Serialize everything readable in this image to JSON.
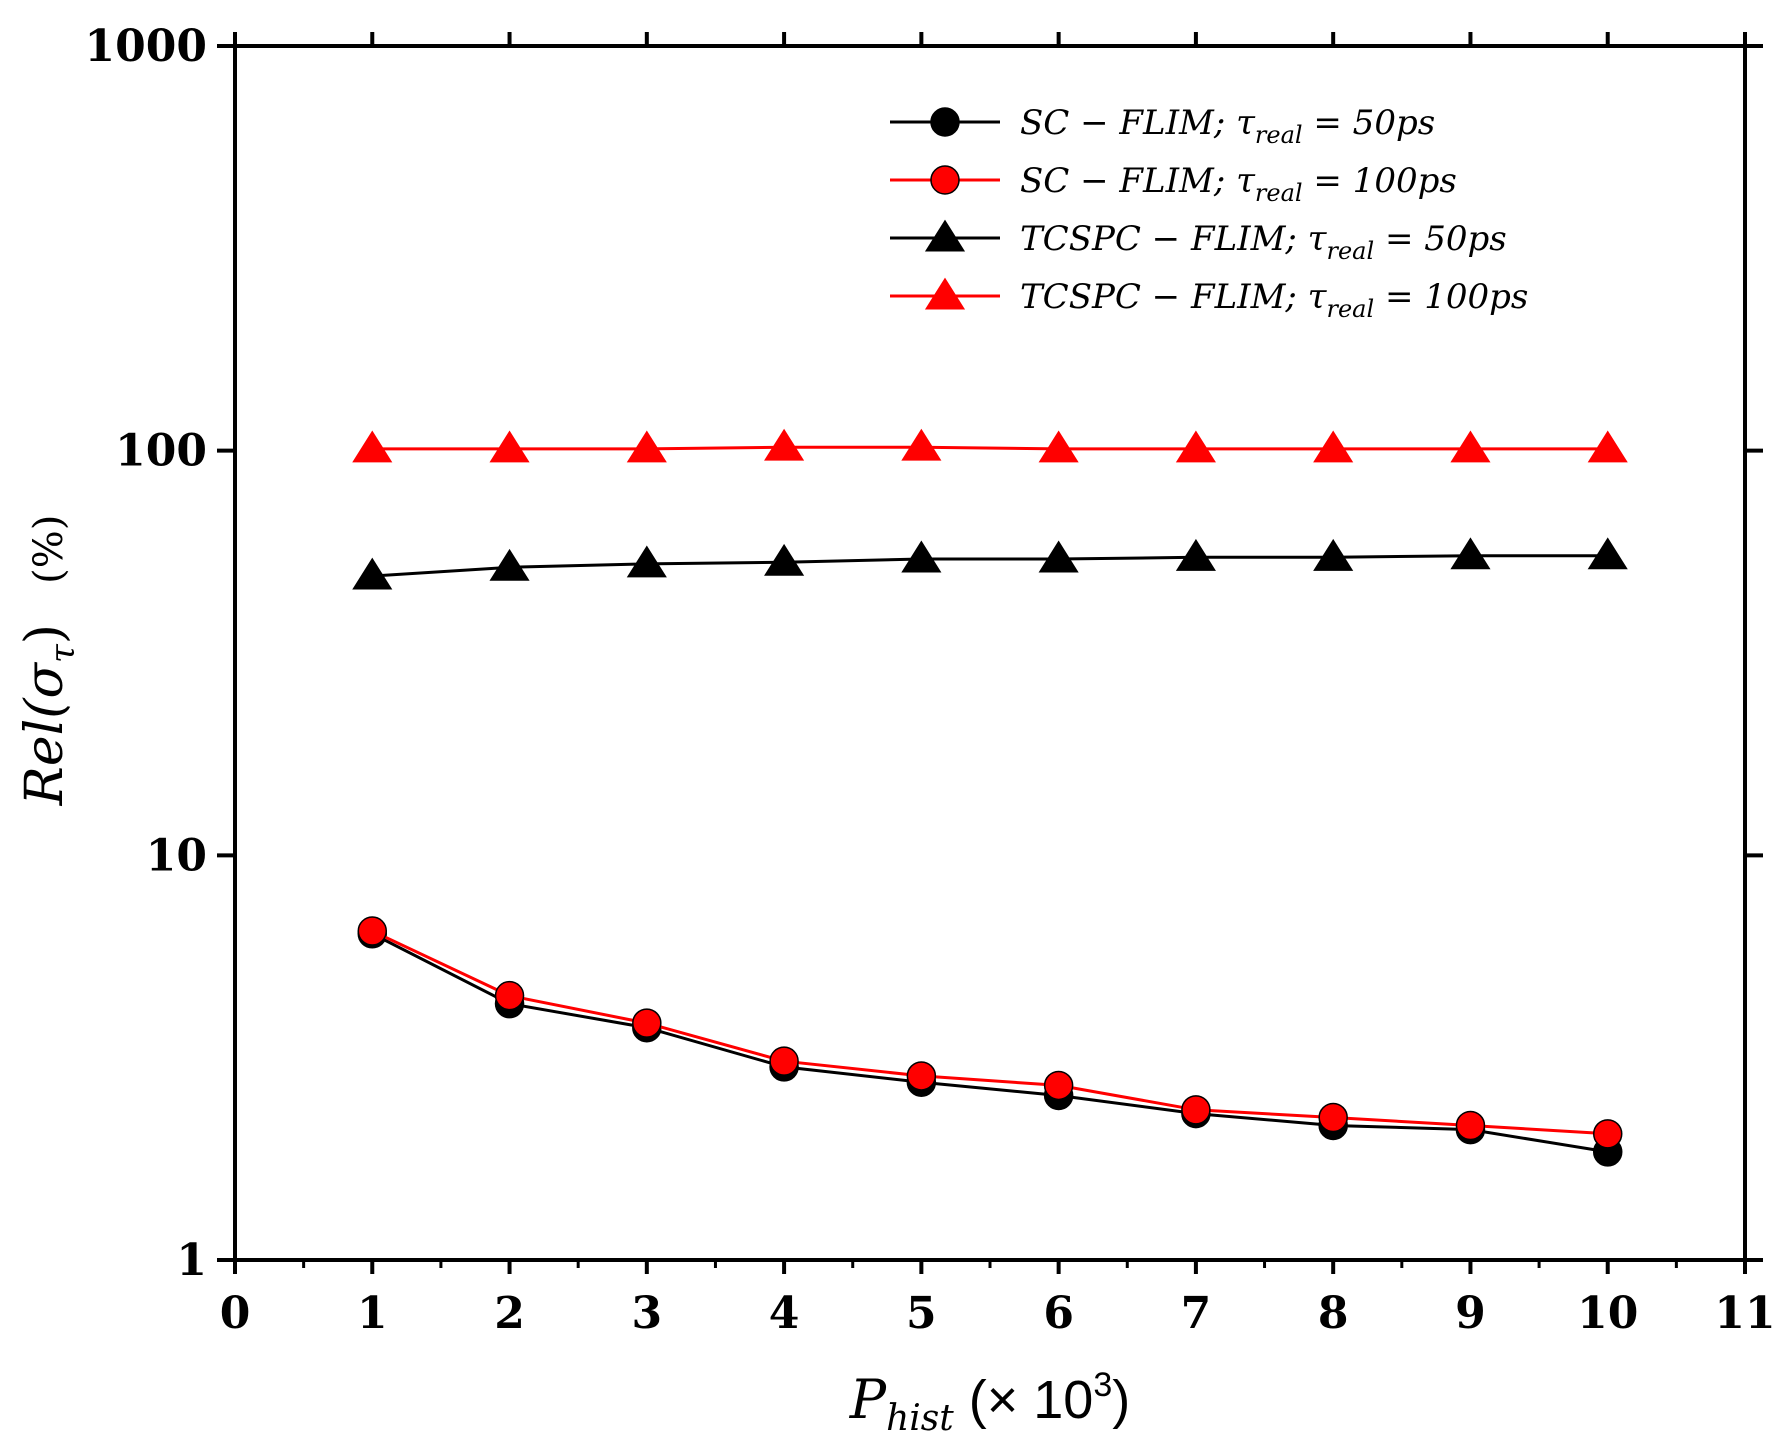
{
  "chart_data": {
    "type": "line",
    "title": "",
    "x_scale": "linear",
    "y_scale": "log",
    "xlim": [
      0,
      11
    ],
    "ylim": [
      1,
      1000
    ],
    "x_ticks": [
      "0",
      "1",
      "2",
      "3",
      "4",
      "5",
      "6",
      "7",
      "8",
      "9",
      "10",
      "11"
    ],
    "y_ticks": [
      "1",
      "10",
      "100",
      "1000"
    ],
    "xlabel": {
      "main": "P",
      "sub": "hist",
      "suffix": " (× 10",
      "exp": "3",
      "close": ")"
    },
    "ylabel": {
      "main": "Rel(σ",
      "sub": "τ",
      "close": ")",
      "unit": "(%)"
    },
    "x": [
      1,
      2,
      3,
      4,
      5,
      6,
      7,
      8,
      9,
      10
    ],
    "series": [
      {
        "name": "SC − FLIM; τ_real = 50ps",
        "label_prefix": "SC − FLIM; τ",
        "label_sub": "real",
        "label_suffix": " = 50ps",
        "color": "#000000",
        "marker": "circle",
        "values": [
          6.4,
          4.3,
          3.75,
          3.0,
          2.75,
          2.55,
          2.3,
          2.15,
          2.1,
          1.85
        ]
      },
      {
        "name": "SC − FLIM; τ_real = 100ps",
        "label_prefix": "SC − FLIM; τ",
        "label_sub": "real",
        "label_suffix": " = 100ps",
        "color": "#ff0000",
        "marker": "circle",
        "values": [
          6.5,
          4.5,
          3.85,
          3.1,
          2.85,
          2.7,
          2.35,
          2.25,
          2.15,
          2.05
        ]
      },
      {
        "name": "TCSPC − FLIM; τ_real = 50ps",
        "label_prefix": "TCSPC − FLIM; τ",
        "label_sub": "real",
        "label_suffix": " = 50ps",
        "color": "#000000",
        "marker": "triangle",
        "values": [
          49,
          51.5,
          52.5,
          53,
          54,
          54,
          54.5,
          54.5,
          55,
          55
        ]
      },
      {
        "name": "TCSPC − FLIM; τ_real = 100ps",
        "label_prefix": "TCSPC − FLIM; τ",
        "label_sub": "real",
        "label_suffix": " = 100ps",
        "color": "#ff0000",
        "marker": "triangle",
        "values": [
          101,
          101,
          101,
          102,
          102,
          101,
          101,
          101,
          101,
          101
        ]
      }
    ],
    "legend_position": "top-right",
    "grid": false
  }
}
